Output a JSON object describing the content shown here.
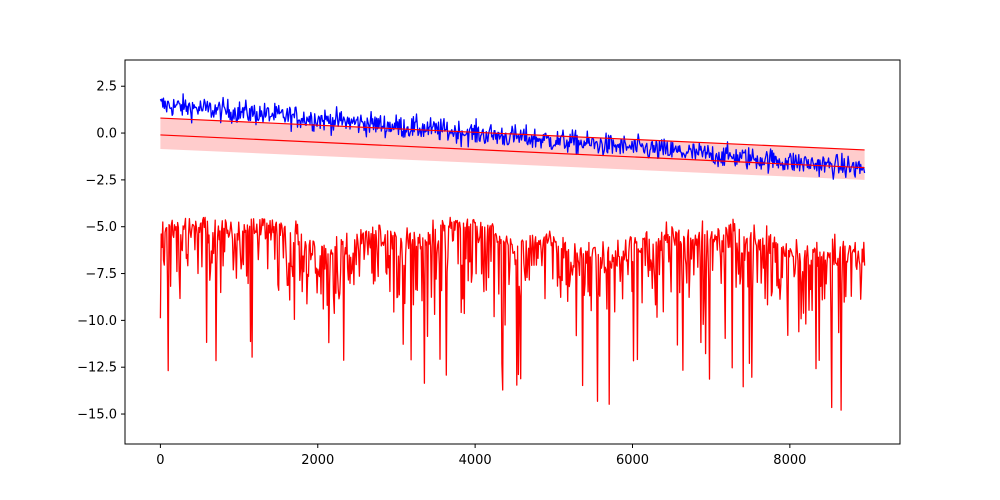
{
  "chart_data": {
    "type": "line",
    "title": "",
    "xlabel": "",
    "ylabel": "",
    "xlim": [
      -450,
      9400
    ],
    "ylim": [
      -16.6,
      3.9
    ],
    "grid": false,
    "legend": "none",
    "x_ticks": [
      0,
      2000,
      4000,
      6000,
      8000
    ],
    "x_tick_labels": [
      "0",
      "2000",
      "4000",
      "6000",
      "8000"
    ],
    "y_ticks": [
      2.5,
      0.0,
      -2.5,
      -5.0,
      -7.5,
      -10.0,
      -12.5,
      -15.0
    ],
    "y_tick_labels": [
      "2.5",
      "0.0",
      "−2.5",
      "−5.0",
      "−7.5",
      "−10.0",
      "−12.5",
      "−15.0"
    ],
    "series": [
      {
        "kind": "noisy_line",
        "color": "#0000ff",
        "x_range": [
          0,
          8950
        ],
        "points": 900,
        "trend_start": 1.5,
        "trend_end": -1.9,
        "noise_amplitude": 0.8,
        "observed_min": -3.3,
        "observed_max": 3.1
      },
      {
        "kind": "noisy_line",
        "color": "#ff0000",
        "x_range": [
          0,
          8950
        ],
        "points": 900,
        "baseline_start": -6.2,
        "baseline_end": -7.0,
        "spikes_down": true,
        "observed_min": -15.5,
        "observed_max": -4.5
      },
      {
        "kind": "trend_line",
        "color": "#ff0000",
        "x": [
          0,
          8950
        ],
        "y": [
          0.8,
          -0.9
        ]
      },
      {
        "kind": "trend_line",
        "color": "#ff0000",
        "x": [
          0,
          8950
        ],
        "y": [
          -0.1,
          -1.85
        ]
      },
      {
        "kind": "band",
        "color": "#ff0000",
        "opacity": 0.2,
        "x": [
          0,
          8950
        ],
        "upper": [
          0.8,
          -0.9
        ],
        "lower": [
          -0.85,
          -2.5
        ]
      }
    ]
  }
}
